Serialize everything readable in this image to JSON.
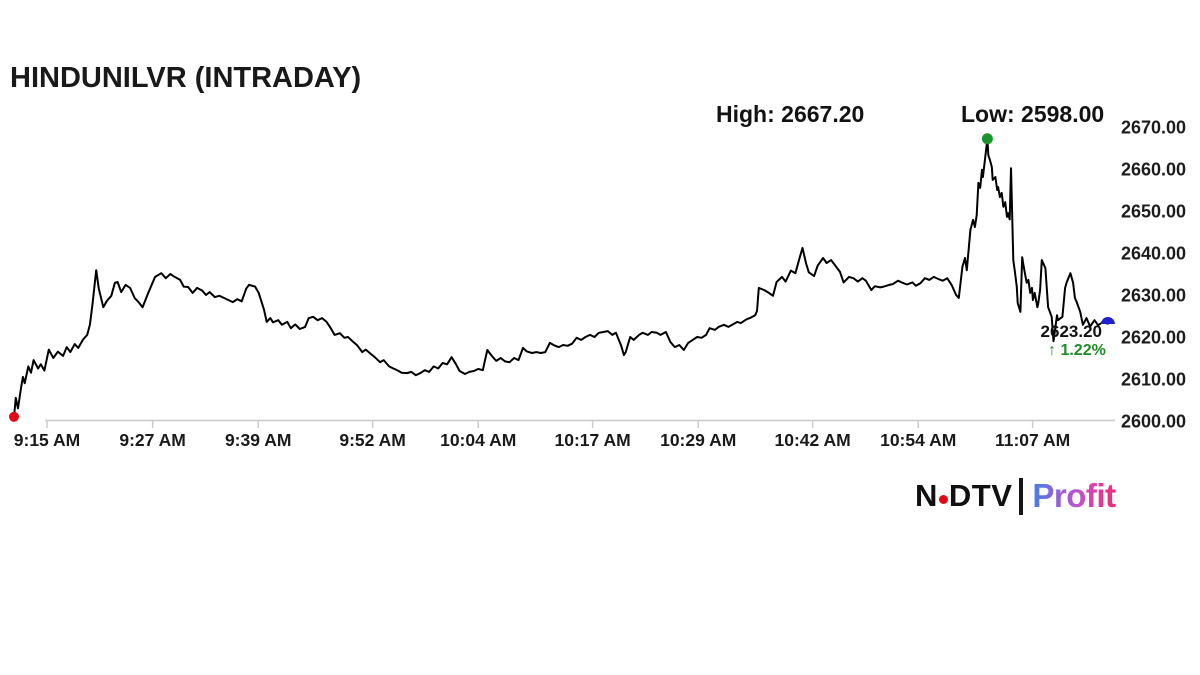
{
  "title": "HINDUNILVR (INTRADAY)",
  "annotations": {
    "high_text": "High: 2667.20",
    "low_text": "Low: 2598.00",
    "last_price_text": "2623.20",
    "change_text": "↑ 1.22%"
  },
  "logo": {
    "ndtv_prefix": "N",
    "ndtv_suffix": "DTV",
    "profit": "Profit"
  },
  "colors": {
    "line": "#000000",
    "grid": "#c9c9c9",
    "axis_text": "#1a1a1a",
    "open_dot": "#e30613",
    "high_dot": "#18962b",
    "last_dot": "#2020cc",
    "change_green": "#1f8b24",
    "ndtv_red": "#e30613",
    "profit_gradient": [
      "#3b82e8",
      "#7a6ae0",
      "#a45ad8",
      "#c74fc4",
      "#e03a9e",
      "#f02a74"
    ]
  },
  "chart_data": {
    "type": "line",
    "symbol": "HINDUNILVR",
    "session": "intraday",
    "session_high": 2667.2,
    "session_low": 2598.0,
    "last_price": 2623.2,
    "change_percent": 1.22,
    "grid": "bottom-axis-only",
    "x_axis": {
      "unit": "minutes_after_09:15_AM",
      "ticks": [
        {
          "m": 0,
          "label": "9:15 AM"
        },
        {
          "m": 12,
          "label": "9:27 AM"
        },
        {
          "m": 24,
          "label": "9:39 AM"
        },
        {
          "m": 37,
          "label": "9:52 AM"
        },
        {
          "m": 49,
          "label": "10:04 AM"
        },
        {
          "m": 62,
          "label": "10:17 AM"
        },
        {
          "m": 74,
          "label": "10:29 AM"
        },
        {
          "m": 87,
          "label": "10:42 AM"
        },
        {
          "m": 99,
          "label": "10:54 AM"
        },
        {
          "m": 112,
          "label": "11:07 AM"
        }
      ]
    },
    "y_axis": {
      "min": 2600,
      "max": 2670,
      "step": 10,
      "label_format": "0.00"
    },
    "markers": {
      "open": {
        "m": 0,
        "price": 2601.0,
        "color": "#e30613",
        "shape": "dot"
      },
      "high": {
        "m": 109,
        "price": 2667.2,
        "color": "#18962b",
        "shape": "dot"
      },
      "last": {
        "m": 122.5,
        "price": 2623.2,
        "color": "#2020cc",
        "shape": "half-dome"
      }
    },
    "series": [
      [
        0,
        2601
      ],
      [
        0.2,
        2605.5
      ],
      [
        0.45,
        2603
      ],
      [
        0.8,
        2608
      ],
      [
        1,
        2610.5
      ],
      [
        1.2,
        2609
      ],
      [
        1.6,
        2613
      ],
      [
        1.9,
        2611.5
      ],
      [
        2.2,
        2614.5
      ],
      [
        2.7,
        2612.5
      ],
      [
        3,
        2613.5
      ],
      [
        3.4,
        2612
      ],
      [
        3.9,
        2617
      ],
      [
        4.4,
        2615
      ],
      [
        4.9,
        2616.5
      ],
      [
        5.5,
        2615.5
      ],
      [
        5.9,
        2617.6
      ],
      [
        6.3,
        2616.4
      ],
      [
        6.8,
        2618.3
      ],
      [
        7.2,
        2617.4
      ],
      [
        7.7,
        2619.3
      ],
      [
        8.2,
        2620.5
      ],
      [
        8.5,
        2622.9
      ],
      [
        8.8,
        2628
      ],
      [
        9.2,
        2635.9
      ],
      [
        9.5,
        2631.5
      ],
      [
        10,
        2627.1
      ],
      [
        10.4,
        2628.6
      ],
      [
        10.9,
        2629.8
      ],
      [
        11.3,
        2632.9
      ],
      [
        11.6,
        2633.1
      ],
      [
        12,
        2630.7
      ],
      [
        12.5,
        2632.4
      ],
      [
        13,
        2631.7
      ],
      [
        13.5,
        2629.3
      ],
      [
        14,
        2628.2
      ],
      [
        14.4,
        2627.1
      ],
      [
        15,
        2630.3
      ],
      [
        15.8,
        2634.3
      ],
      [
        16.5,
        2635.2
      ],
      [
        17,
        2634
      ],
      [
        17.5,
        2635
      ],
      [
        18,
        2634.3
      ],
      [
        18.6,
        2633.6
      ],
      [
        19,
        2632
      ],
      [
        19.5,
        2631.9
      ],
      [
        20,
        2630.5
      ],
      [
        20.5,
        2631.7
      ],
      [
        21.1,
        2631
      ],
      [
        21.5,
        2630
      ],
      [
        21.9,
        2630.7
      ],
      [
        22.5,
        2629.5
      ],
      [
        23,
        2629.8
      ],
      [
        23.5,
        2629.3
      ],
      [
        24,
        2628.8
      ],
      [
        24.5,
        2628.3
      ],
      [
        25,
        2629
      ],
      [
        25.5,
        2628.5
      ],
      [
        26,
        2631.5
      ],
      [
        26.3,
        2632.4
      ],
      [
        27,
        2632
      ],
      [
        27.4,
        2630.5
      ],
      [
        28,
        2626.5
      ],
      [
        28.3,
        2623.6
      ],
      [
        28.7,
        2624.5
      ],
      [
        29,
        2623.5
      ],
      [
        29.6,
        2624
      ],
      [
        30,
        2622.9
      ],
      [
        30.6,
        2623.6
      ],
      [
        31,
        2622.1
      ],
      [
        31.5,
        2623
      ],
      [
        32,
        2621.9
      ],
      [
        32.6,
        2622.4
      ],
      [
        33,
        2624.5
      ],
      [
        33.5,
        2624.8
      ],
      [
        34,
        2624
      ],
      [
        34.5,
        2624.5
      ],
      [
        35,
        2623.6
      ],
      [
        35.5,
        2622
      ],
      [
        35.9,
        2620.5
      ],
      [
        36.5,
        2620.9
      ],
      [
        37,
        2619.8
      ],
      [
        37.4,
        2620
      ],
      [
        38,
        2618.8
      ],
      [
        38.4,
        2618.1
      ],
      [
        39,
        2616.4
      ],
      [
        39.4,
        2617
      ],
      [
        40,
        2615.9
      ],
      [
        40.4,
        2615.2
      ],
      [
        41,
        2614
      ],
      [
        41.4,
        2614.5
      ],
      [
        42,
        2613
      ],
      [
        42.4,
        2612.6
      ],
      [
        43,
        2612
      ],
      [
        43.4,
        2611.5
      ],
      [
        44,
        2611.4
      ],
      [
        44.5,
        2611.7
      ],
      [
        45,
        2610.9
      ],
      [
        45.5,
        2611.4
      ],
      [
        46,
        2612.1
      ],
      [
        46.5,
        2611.7
      ],
      [
        47,
        2613
      ],
      [
        47.5,
        2612.5
      ],
      [
        48,
        2613.8
      ],
      [
        48.5,
        2613.5
      ],
      [
        49,
        2615.2
      ],
      [
        49.5,
        2613.5
      ],
      [
        49.9,
        2611.9
      ],
      [
        50.5,
        2611.2
      ],
      [
        51,
        2611.7
      ],
      [
        51.5,
        2611.9
      ],
      [
        52,
        2612.4
      ],
      [
        52.5,
        2612.1
      ],
      [
        53,
        2616.9
      ],
      [
        53.5,
        2615.5
      ],
      [
        54,
        2614.3
      ],
      [
        54.5,
        2615
      ],
      [
        55,
        2614.2
      ],
      [
        55.5,
        2614
      ],
      [
        56,
        2615
      ],
      [
        56.5,
        2614.5
      ],
      [
        57,
        2617.4
      ],
      [
        57.4,
        2616.6
      ],
      [
        58,
        2616.2
      ],
      [
        58.5,
        2616.4
      ],
      [
        59,
        2616.2
      ],
      [
        59.5,
        2616.4
      ],
      [
        60,
        2618.6
      ],
      [
        60.5,
        2618
      ],
      [
        61,
        2617.6
      ],
      [
        61.5,
        2618.1
      ],
      [
        62,
        2617.9
      ],
      [
        62.5,
        2618.4
      ],
      [
        63,
        2619.8
      ],
      [
        63.5,
        2619.3
      ],
      [
        64,
        2620
      ],
      [
        64.5,
        2620.5
      ],
      [
        65,
        2620
      ],
      [
        65.5,
        2621
      ],
      [
        66,
        2621.2
      ],
      [
        66.5,
        2621.4
      ],
      [
        67,
        2620.5
      ],
      [
        67.4,
        2621
      ],
      [
        68,
        2617.9
      ],
      [
        68.3,
        2615.7
      ],
      [
        68.5,
        2616.4
      ],
      [
        69,
        2620
      ],
      [
        69.4,
        2619.3
      ],
      [
        70,
        2620.5
      ],
      [
        70.4,
        2621
      ],
      [
        71,
        2620.5
      ],
      [
        71.4,
        2621.2
      ],
      [
        72,
        2621
      ],
      [
        72.4,
        2620.5
      ],
      [
        73,
        2621.2
      ],
      [
        73.5,
        2618.8
      ],
      [
        74,
        2617.6
      ],
      [
        74.5,
        2618.1
      ],
      [
        75,
        2616.9
      ],
      [
        75.5,
        2618.6
      ],
      [
        76,
        2619.3
      ],
      [
        76.5,
        2620
      ],
      [
        77,
        2619.8
      ],
      [
        77.5,
        2620.5
      ],
      [
        77.9,
        2622.1
      ],
      [
        78.5,
        2621.7
      ],
      [
        78.9,
        2622.4
      ],
      [
        79.5,
        2622.9
      ],
      [
        80,
        2622.4
      ],
      [
        80.5,
        2623
      ],
      [
        81,
        2623.6
      ],
      [
        81.4,
        2623.3
      ],
      [
        82,
        2624.2
      ],
      [
        82.4,
        2624.5
      ],
      [
        83,
        2625.2
      ],
      [
        83.2,
        2626.2
      ],
      [
        83.4,
        2631.7
      ],
      [
        84,
        2631.2
      ],
      [
        84.4,
        2630.7
      ],
      [
        85,
        2629.8
      ],
      [
        85.4,
        2633.1
      ],
      [
        86,
        2634.3
      ],
      [
        86.4,
        2633.2
      ],
      [
        87,
        2635.8
      ],
      [
        87.5,
        2635.2
      ],
      [
        88,
        2639
      ],
      [
        88.3,
        2641.2
      ],
      [
        88.7,
        2637.5
      ],
      [
        89,
        2635.4
      ],
      [
        89.6,
        2634.5
      ],
      [
        90,
        2637
      ],
      [
        90.6,
        2638.8
      ],
      [
        91,
        2637.6
      ],
      [
        91.5,
        2638.3
      ],
      [
        91.9,
        2637.2
      ],
      [
        92.5,
        2635.5
      ],
      [
        92.9,
        2633
      ],
      [
        93.5,
        2634.3
      ],
      [
        94,
        2634
      ],
      [
        94.5,
        2633.2
      ],
      [
        95,
        2634
      ],
      [
        95.4,
        2633.4
      ],
      [
        96,
        2631.2
      ],
      [
        96.4,
        2632.1
      ],
      [
        97,
        2631.8
      ],
      [
        97.4,
        2632
      ],
      [
        98,
        2632.4
      ],
      [
        98.4,
        2632.6
      ],
      [
        99,
        2633.4
      ],
      [
        99.4,
        2633
      ],
      [
        100,
        2632.5
      ],
      [
        100.6,
        2633
      ],
      [
        101,
        2632.2
      ],
      [
        101.5,
        2632.8
      ],
      [
        102,
        2634
      ],
      [
        102.5,
        2633.6
      ],
      [
        103,
        2634.3
      ],
      [
        103.5,
        2633.8
      ],
      [
        104,
        2633.4
      ],
      [
        104.5,
        2634
      ],
      [
        105,
        2632.4
      ],
      [
        105.5,
        2630
      ],
      [
        105.8,
        2629.3
      ],
      [
        106.2,
        2636.7
      ],
      [
        106.5,
        2638.8
      ],
      [
        106.7,
        2635.9
      ],
      [
        107.1,
        2645.5
      ],
      [
        107.4,
        2647.9
      ],
      [
        107.6,
        2646.2
      ],
      [
        107.8,
        2649
      ],
      [
        108,
        2656.7
      ],
      [
        108.2,
        2655.5
      ],
      [
        108.4,
        2659.8
      ],
      [
        108.5,
        2658.1
      ],
      [
        108.7,
        2661.7
      ],
      [
        109,
        2667.2
      ],
      [
        109.1,
        2663.3
      ],
      [
        109.3,
        2662.1
      ],
      [
        109.5,
        2660.5
      ],
      [
        109.6,
        2657.4
      ],
      [
        109.9,
        2658.1
      ],
      [
        110.1,
        2655
      ],
      [
        110.2,
        2655.7
      ],
      [
        110.4,
        2653.3
      ],
      [
        110.6,
        2654.3
      ],
      [
        110.8,
        2651
      ],
      [
        111,
        2652.1
      ],
      [
        111.2,
        2648.6
      ],
      [
        111.3,
        2649.5
      ],
      [
        111.5,
        2648
      ],
      [
        111.65,
        2660.2
      ],
      [
        111.9,
        2638.3
      ],
      [
        112.1,
        2635.2
      ],
      [
        112.3,
        2631.9
      ],
      [
        112.4,
        2628.1
      ],
      [
        112.7,
        2626
      ],
      [
        112.9,
        2639
      ],
      [
        113,
        2637.6
      ],
      [
        113.2,
        2635.2
      ],
      [
        113.4,
        2632.9
      ],
      [
        113.6,
        2633.6
      ],
      [
        113.8,
        2630.5
      ],
      [
        114,
        2631.7
      ],
      [
        114.1,
        2628.8
      ],
      [
        114.3,
        2630.5
      ],
      [
        114.6,
        2627.1
      ],
      [
        114.7,
        2628.1
      ],
      [
        114.9,
        2631.2
      ],
      [
        115.1,
        2638.3
      ],
      [
        115.5,
        2636.4
      ],
      [
        115.8,
        2627.1
      ],
      [
        116.2,
        2624.8
      ],
      [
        116.4,
        2619
      ],
      [
        116.8,
        2625.2
      ],
      [
        116.9,
        2624
      ],
      [
        117.4,
        2624.8
      ],
      [
        117.7,
        2631.7
      ],
      [
        117.9,
        2633.1
      ],
      [
        118.3,
        2635.2
      ],
      [
        118.6,
        2632.9
      ],
      [
        118.8,
        2629.3
      ],
      [
        119,
        2628.3
      ],
      [
        119.4,
        2626
      ],
      [
        119.7,
        2622.9
      ],
      [
        120.1,
        2624.5
      ],
      [
        120.5,
        2622.5
      ],
      [
        121,
        2624
      ],
      [
        121.4,
        2622.8
      ],
      [
        121.9,
        2623.5
      ],
      [
        122.5,
        2623.2
      ]
    ]
  }
}
